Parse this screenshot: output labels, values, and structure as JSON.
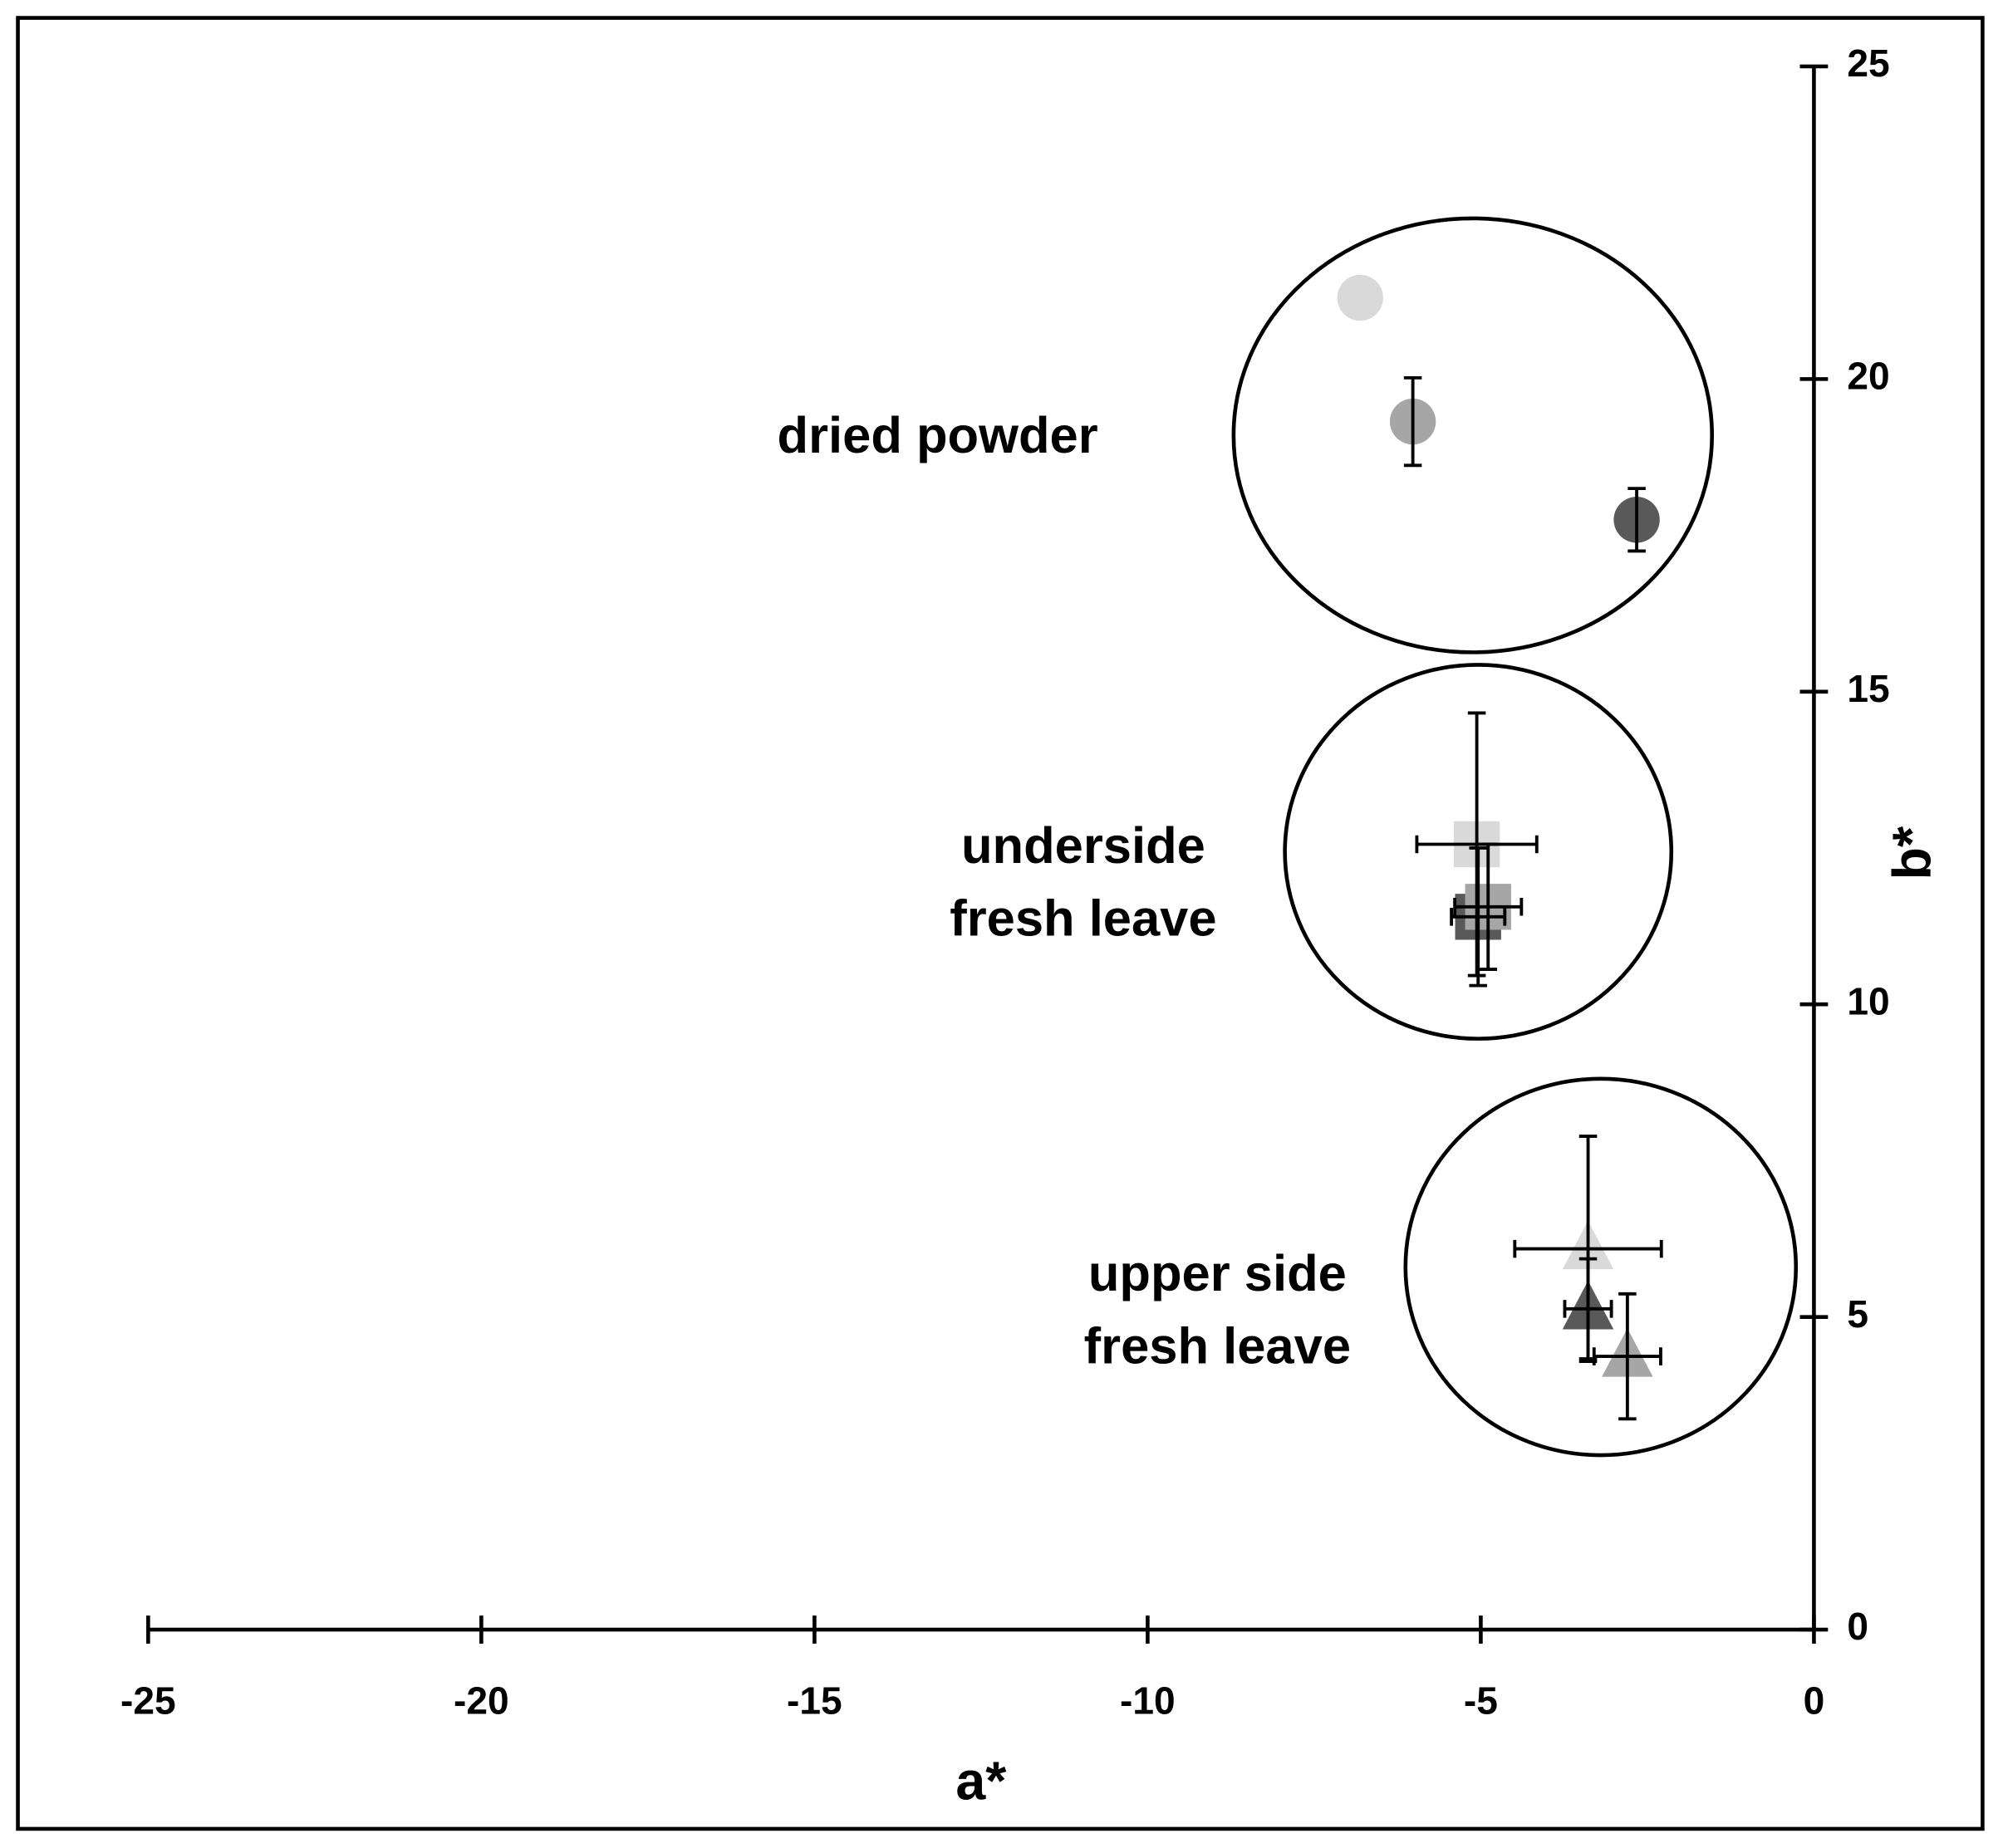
{
  "chart_data": {
    "type": "scatter",
    "x_label": "a*",
    "y_label": "b*",
    "xlim": [
      -25,
      0
    ],
    "ylim": [
      0,
      25
    ],
    "xticks": [
      -25,
      -20,
      -15,
      -10,
      -5,
      0
    ],
    "yticks": [
      0,
      5,
      10,
      15,
      20,
      25
    ],
    "groups": [
      {
        "label": [
          "dried powder"
        ],
        "ellipse": {
          "cx": -5.12,
          "cy": 19.1,
          "rx": 3.59,
          "ry": 3.47
        }
      },
      {
        "label": [
          "underside",
          "fresh leave"
        ],
        "ellipse": {
          "cx": -5.04,
          "cy": 12.44,
          "rx": 2.9,
          "ry": 2.99
        }
      },
      {
        "label": [
          "upper side",
          "fresh leave"
        ],
        "ellipse": {
          "cx": -3.2,
          "cy": 5.8,
          "rx": 2.93,
          "ry": 3.01
        }
      }
    ],
    "points": [
      {
        "marker": "circle",
        "color": "#d9d9d9",
        "x": -6.81,
        "y": 21.3,
        "xerr": null,
        "yerr": null
      },
      {
        "marker": "circle",
        "color": "#a6a6a6",
        "x": -6.02,
        "y": 19.32,
        "xerr": null,
        "yerr": 0.7
      },
      {
        "marker": "circle",
        "color": "#595959",
        "x": -2.66,
        "y": 17.75,
        "xerr": null,
        "yerr": 0.5
      },
      {
        "marker": "square",
        "color": "#d9d9d9",
        "x": -5.06,
        "y": 12.56,
        "xerr": 0.9,
        "yerr": 2.1
      },
      {
        "marker": "square",
        "color": "#595959",
        "x": -5.04,
        "y": 11.4,
        "xerr": 0.4,
        "yerr": 1.1
      },
      {
        "marker": "square",
        "color": "#a6a6a6",
        "x": -4.89,
        "y": 11.56,
        "xerr": 0.5,
        "yerr": 1.0
      },
      {
        "marker": "triangle",
        "color": "#d9d9d9",
        "x": -3.39,
        "y": 6.09,
        "xerr": 1.1,
        "yerr": 1.8
      },
      {
        "marker": "triangle",
        "color": "#595959",
        "x": -3.39,
        "y": 5.13,
        "xerr": 0.35,
        "yerr": 0.8
      },
      {
        "marker": "triangle",
        "color": "#a6a6a6",
        "x": -2.8,
        "y": 4.37,
        "xerr": 0.5,
        "yerr": 1.0
      }
    ]
  }
}
